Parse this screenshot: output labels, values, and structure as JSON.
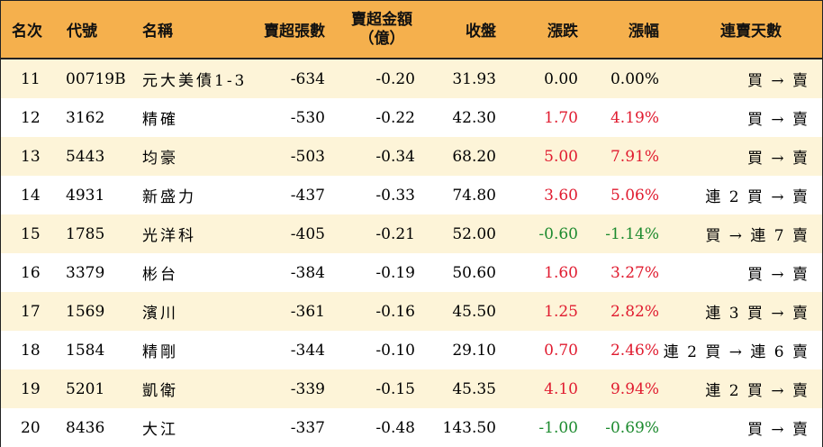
{
  "header": {
    "rank": "名次",
    "code": "代號",
    "name": "名稱",
    "net_sell_shares": "賣超張數",
    "net_sell_amount_line1": "賣超金額",
    "net_sell_amount_line2": "（億）",
    "close": "收盤",
    "change": "漲跌",
    "change_pct": "漲幅",
    "streak": "連賣天數"
  },
  "colors": {
    "header_bg": "#f5b04d",
    "row_alt_bg": "#fdf4d8",
    "up": "#e01b2f",
    "down": "#1c8a2e"
  },
  "rows": [
    {
      "rank": "11",
      "code": "00719B",
      "name": "元大美債1-3",
      "shares": "-634",
      "amount": "-0.20",
      "close": "31.93",
      "change": "0.00",
      "pct": "0.00%",
      "dir": "flat",
      "streak": "買 → 賣"
    },
    {
      "rank": "12",
      "code": "3162",
      "name": "精確",
      "shares": "-530",
      "amount": "-0.22",
      "close": "42.30",
      "change": "1.70",
      "pct": "4.19%",
      "dir": "up",
      "streak": "買 → 賣"
    },
    {
      "rank": "13",
      "code": "5443",
      "name": "均豪",
      "shares": "-503",
      "amount": "-0.34",
      "close": "68.20",
      "change": "5.00",
      "pct": "7.91%",
      "dir": "up",
      "streak": "買 → 賣"
    },
    {
      "rank": "14",
      "code": "4931",
      "name": "新盛力",
      "shares": "-437",
      "amount": "-0.33",
      "close": "74.80",
      "change": "3.60",
      "pct": "5.06%",
      "dir": "up",
      "streak": "連 2 買 → 賣"
    },
    {
      "rank": "15",
      "code": "1785",
      "name": "光洋科",
      "shares": "-405",
      "amount": "-0.21",
      "close": "52.00",
      "change": "-0.60",
      "pct": "-1.14%",
      "dir": "down",
      "streak": "買 → 連 7 賣"
    },
    {
      "rank": "16",
      "code": "3379",
      "name": "彬台",
      "shares": "-384",
      "amount": "-0.19",
      "close": "50.60",
      "change": "1.60",
      "pct": "3.27%",
      "dir": "up",
      "streak": "買 → 賣"
    },
    {
      "rank": "17",
      "code": "1569",
      "name": "濱川",
      "shares": "-361",
      "amount": "-0.16",
      "close": "45.50",
      "change": "1.25",
      "pct": "2.82%",
      "dir": "up",
      "streak": "連 3 買 → 賣"
    },
    {
      "rank": "18",
      "code": "1584",
      "name": "精剛",
      "shares": "-344",
      "amount": "-0.10",
      "close": "29.10",
      "change": "0.70",
      "pct": "2.46%",
      "dir": "up",
      "streak": "連 2 買 → 連 6 賣"
    },
    {
      "rank": "19",
      "code": "5201",
      "name": "凱衛",
      "shares": "-339",
      "amount": "-0.15",
      "close": "45.35",
      "change": "4.10",
      "pct": "9.94%",
      "dir": "up",
      "streak": "連 2 買 → 賣"
    },
    {
      "rank": "20",
      "code": "8436",
      "name": "大江",
      "shares": "-337",
      "amount": "-0.48",
      "close": "143.50",
      "change": "-1.00",
      "pct": "-0.69%",
      "dir": "down",
      "streak": "買 → 賣"
    }
  ]
}
